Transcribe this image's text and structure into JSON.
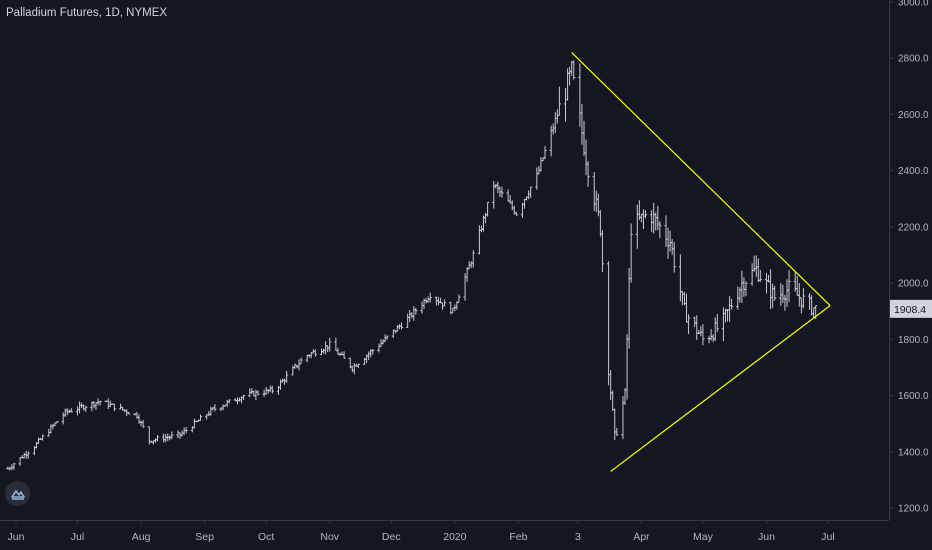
{
  "header": {
    "title": "Palladium Futures, 1D, NYMEX"
  },
  "logo": {
    "icon": "chart-logo-icon"
  },
  "colors": {
    "background": "#131722",
    "bars": "#c7cad2",
    "trendlines": "#ffff00",
    "axis_text": "#b2b5be",
    "last_price_bg": "#d1d4dc",
    "last_price_text": "#131722"
  },
  "chart_data": {
    "type": "ohlc",
    "title": "Palladium Futures, 1D, NYMEX",
    "xlabel": "",
    "ylabel": "",
    "ylim": [
      1200,
      3000
    ],
    "y_ticks": [
      "1200.0",
      "1400.0",
      "1600.0",
      "1800.0",
      "2000.0",
      "2200.0",
      "2400.0",
      "2600.0",
      "2800.0",
      "3000.0"
    ],
    "x_ticks": [
      "Jun",
      "Jul",
      "Aug",
      "Sep",
      "Oct",
      "Nov",
      "Dec",
      "2020",
      "Feb",
      "3",
      "Apr",
      "May",
      "Jun",
      "Jul"
    ],
    "last_price": "1908.4",
    "grid": false,
    "series": [
      {
        "close_path": [
          {
            "date": "2019-05-28",
            "close": 1340
          },
          {
            "date": "2019-06-10",
            "close": 1420
          },
          {
            "date": "2019-06-25",
            "close": 1540
          },
          {
            "date": "2019-07-12",
            "close": 1580
          },
          {
            "date": "2019-07-30",
            "close": 1530
          },
          {
            "date": "2019-08-05",
            "close": 1440
          },
          {
            "date": "2019-08-20",
            "close": 1460
          },
          {
            "date": "2019-09-05",
            "close": 1550
          },
          {
            "date": "2019-09-20",
            "close": 1600
          },
          {
            "date": "2019-10-05",
            "close": 1620
          },
          {
            "date": "2019-10-20",
            "close": 1740
          },
          {
            "date": "2019-11-01",
            "close": 1780
          },
          {
            "date": "2019-11-12",
            "close": 1700
          },
          {
            "date": "2019-11-25",
            "close": 1780
          },
          {
            "date": "2019-12-10",
            "close": 1880
          },
          {
            "date": "2019-12-20",
            "close": 1960
          },
          {
            "date": "2019-12-31",
            "close": 1900
          },
          {
            "date": "2020-01-10",
            "close": 2100
          },
          {
            "date": "2020-01-20",
            "close": 2350
          },
          {
            "date": "2020-01-31",
            "close": 2250
          },
          {
            "date": "2020-02-10",
            "close": 2380
          },
          {
            "date": "2020-02-20",
            "close": 2600
          },
          {
            "date": "2020-02-27",
            "close": 2750
          },
          {
            "date": "2020-03-05",
            "close": 2450
          },
          {
            "date": "2020-03-12",
            "close": 2200
          },
          {
            "date": "2020-03-16",
            "close": 1700
          },
          {
            "date": "2020-03-19",
            "close": 1450
          },
          {
            "date": "2020-03-24",
            "close": 1600
          },
          {
            "date": "2020-03-27",
            "close": 2200
          },
          {
            "date": "2020-04-05",
            "close": 2250
          },
          {
            "date": "2020-04-15",
            "close": 2150
          },
          {
            "date": "2020-04-22",
            "close": 1900
          },
          {
            "date": "2020-05-01",
            "close": 1800
          },
          {
            "date": "2020-05-10",
            "close": 1850
          },
          {
            "date": "2020-05-20",
            "close": 2000
          },
          {
            "date": "2020-05-27",
            "close": 2050
          },
          {
            "date": "2020-06-05",
            "close": 1950
          },
          {
            "date": "2020-06-12",
            "close": 1980
          },
          {
            "date": "2020-06-22",
            "close": 1920
          },
          {
            "date": "2020-06-25",
            "close": 1908.4
          }
        ]
      }
    ],
    "annotations": [
      {
        "type": "trendline",
        "from": {
          "date": "2020-02-27",
          "price": 2820
        },
        "to": {
          "date": "2020-07-02",
          "price": 1920
        }
      },
      {
        "type": "trendline",
        "from": {
          "date": "2020-03-17",
          "price": 1330
        },
        "to": {
          "date": "2020-07-02",
          "price": 1920
        }
      }
    ]
  }
}
